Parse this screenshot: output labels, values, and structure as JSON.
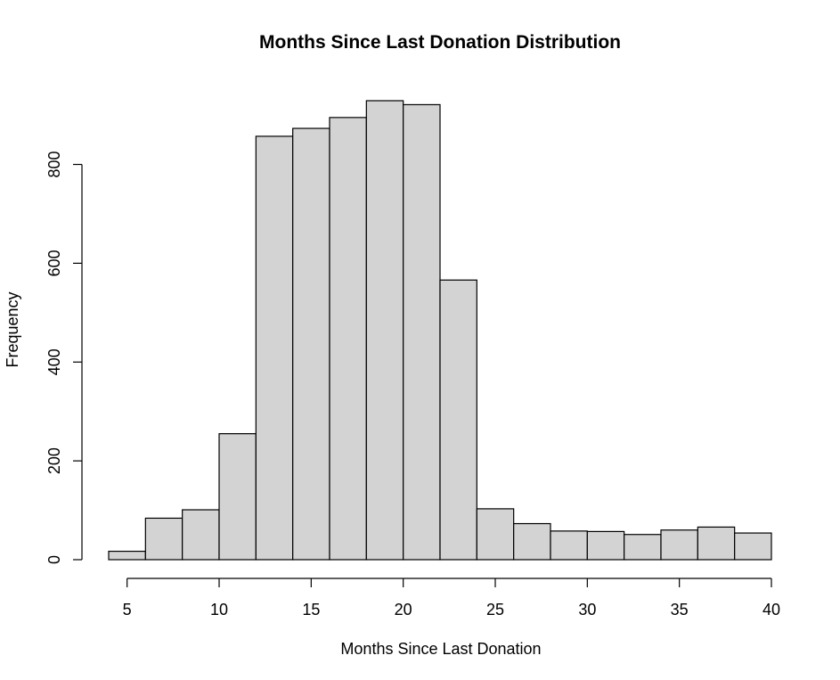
{
  "chart_data": {
    "type": "bar",
    "title": "Months Since Last Donation Distribution",
    "xlabel": "Months Since Last Donation",
    "ylabel": "Frequency",
    "bins": [
      {
        "start": 4,
        "end": 6,
        "count": 17
      },
      {
        "start": 6,
        "end": 8,
        "count": 84
      },
      {
        "start": 8,
        "end": 10,
        "count": 101
      },
      {
        "start": 10,
        "end": 12,
        "count": 255
      },
      {
        "start": 12,
        "end": 14,
        "count": 857
      },
      {
        "start": 14,
        "end": 16,
        "count": 873
      },
      {
        "start": 16,
        "end": 18,
        "count": 895
      },
      {
        "start": 18,
        "end": 20,
        "count": 929
      },
      {
        "start": 20,
        "end": 22,
        "count": 921
      },
      {
        "start": 22,
        "end": 24,
        "count": 566
      },
      {
        "start": 24,
        "end": 26,
        "count": 103
      },
      {
        "start": 26,
        "end": 28,
        "count": 73
      },
      {
        "start": 28,
        "end": 30,
        "count": 58
      },
      {
        "start": 30,
        "end": 32,
        "count": 57
      },
      {
        "start": 32,
        "end": 34,
        "count": 51
      },
      {
        "start": 34,
        "end": 36,
        "count": 60
      },
      {
        "start": 36,
        "end": 38,
        "count": 66
      },
      {
        "start": 38,
        "end": 40,
        "count": 54
      }
    ],
    "xlim": [
      4,
      40
    ],
    "ylim": [
      0,
      929
    ],
    "x_ticks": [
      "5",
      "10",
      "15",
      "20",
      "25",
      "30",
      "35",
      "40"
    ],
    "y_ticks": [
      "0",
      "200",
      "400",
      "600",
      "800"
    ],
    "grid": false,
    "legend": "none",
    "bar_color": "#d3d3d3",
    "edge_color": "#000000"
  }
}
